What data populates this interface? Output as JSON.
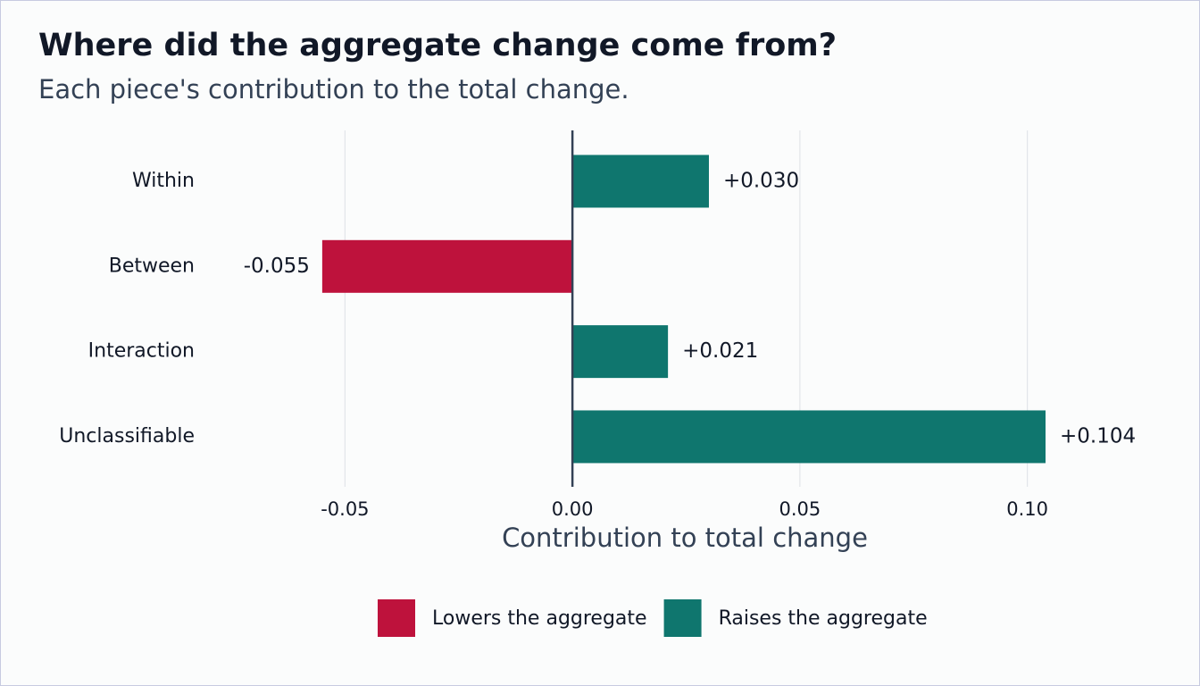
{
  "chart_data": {
    "type": "bar",
    "orientation": "horizontal",
    "title": "Where did the aggregate change come from?",
    "subtitle": "Each piece's contribution to the total change.",
    "x_label": "Contribution to total change",
    "categories": [
      "Within",
      "Between",
      "Interaction",
      "Unclassifiable"
    ],
    "values": [
      0.03,
      -0.055,
      0.021,
      0.104
    ],
    "value_labels": [
      "+0.030",
      "-0.055",
      "+0.021",
      "+0.104"
    ],
    "xlim": [
      -0.075,
      0.125
    ],
    "xticks": [
      -0.05,
      {
        "value": 0,
        "label": "0.00"
      },
      0.05,
      {
        "value": 0.1,
        "label": "0.10"
      }
    ],
    "grid": true,
    "legend": [
      {
        "name": "Lowers the aggregate",
        "color": "#be123c"
      },
      {
        "name": "Raises the aggregate",
        "color": "#0f766e"
      }
    ],
    "legend_position": "bottom"
  }
}
